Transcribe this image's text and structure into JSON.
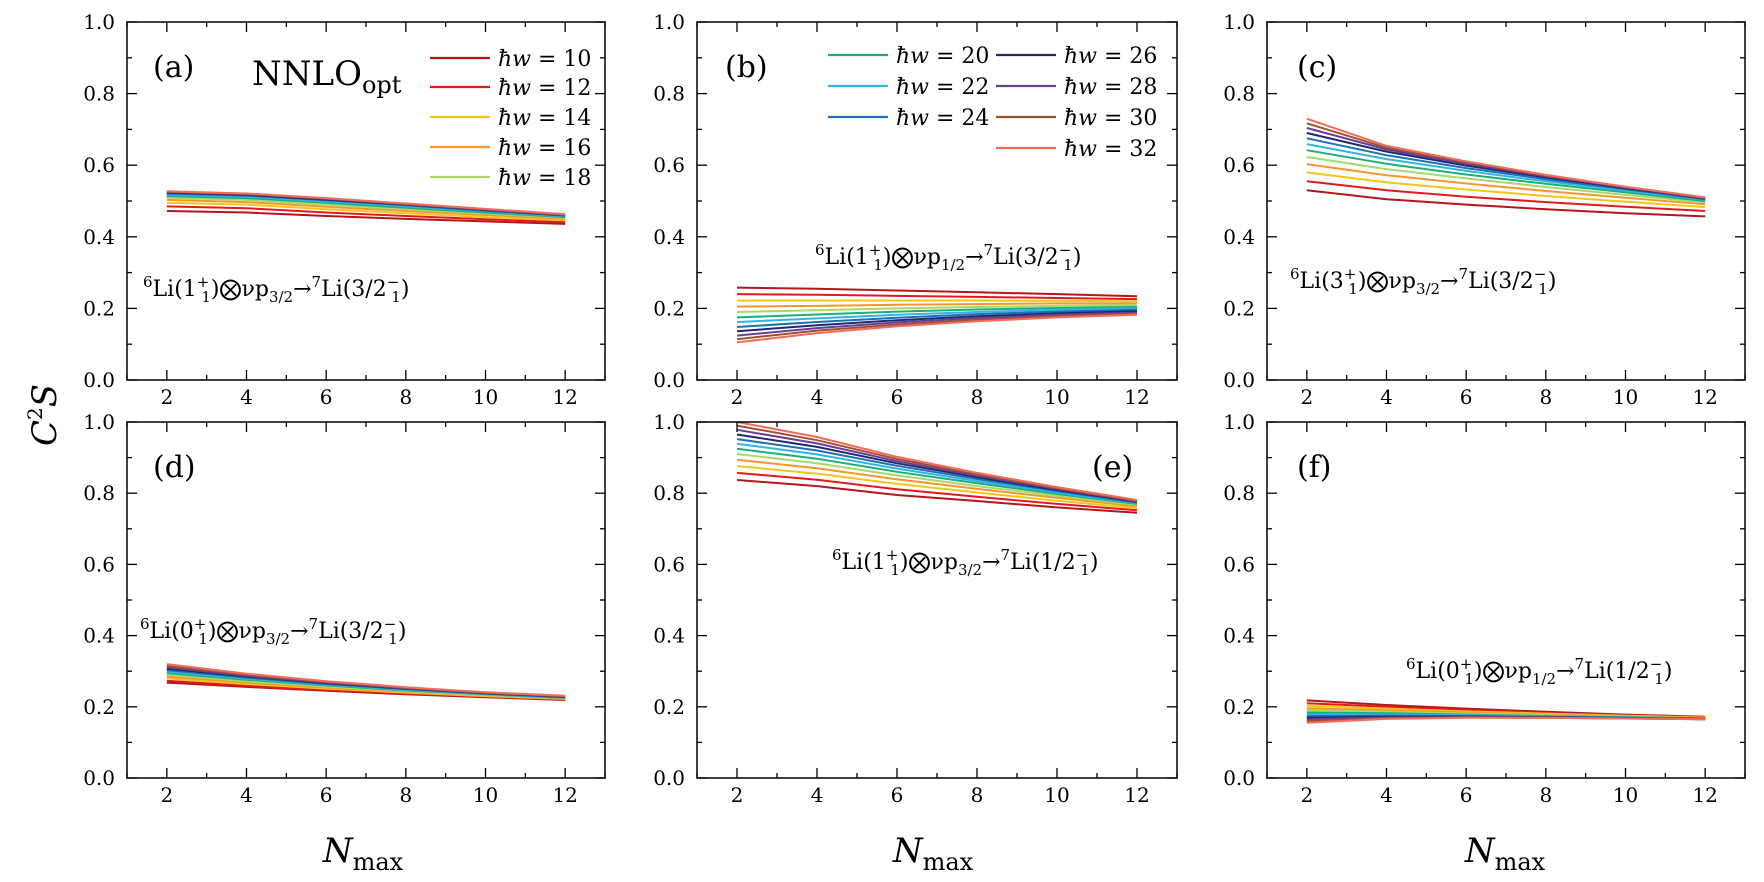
{
  "figure": {
    "ylabel_main": "C",
    "ylabel_sup": "2",
    "ylabel_tail": "S",
    "xlabel_main": "N",
    "xlabel_sub": "max",
    "model_main": "NNLO",
    "model_sub": "opt"
  },
  "legend_entries": [
    {
      "label": "ħw = 10",
      "color": "#b3171c"
    },
    {
      "label": "ħw = 12",
      "color": "#e31a1c"
    },
    {
      "label": "ħw = 14",
      "color": "#f5c518"
    },
    {
      "label": "ħw = 16",
      "color": "#f7962f"
    },
    {
      "label": "ħw = 18",
      "color": "#a6d96a"
    },
    {
      "label": "ħw = 20",
      "color": "#1aae7a"
    },
    {
      "label": "ħw = 22",
      "color": "#33b4e6"
    },
    {
      "label": "ħw = 24",
      "color": "#1f6fb4"
    },
    {
      "label": "ħw = 26",
      "color": "#1f2a6e"
    },
    {
      "label": "ħw = 28",
      "color": "#6a3d9a"
    },
    {
      "label": "ħw = 30",
      "color": "#a0522d"
    },
    {
      "label": "ħw = 32",
      "color": "#f26b5b"
    }
  ],
  "chart_data": [
    {
      "type": "line",
      "panel": "(a)",
      "reaction": {
        "pre": "6",
        "a": "Li(1",
        "b": "+",
        "c": "1",
        "d": ")⨂νp",
        "e": "3/2",
        "f": "→",
        "g": "7",
        "h": "Li(3/2",
        "i": "−",
        "j": "1",
        "k": ")"
      },
      "x": [
        2,
        4,
        6,
        8,
        10,
        12
      ],
      "xlim": [
        1,
        13
      ],
      "ylim": [
        0,
        1.0
      ],
      "xticks": [
        2,
        4,
        6,
        8,
        10,
        12
      ],
      "yticks": [
        0.0,
        0.2,
        0.4,
        0.6,
        0.8,
        1.0
      ],
      "series": [
        {
          "name": "ħw = 10",
          "values": [
            0.472,
            0.468,
            0.458,
            0.45,
            0.443,
            0.436
          ]
        },
        {
          "name": "ħw = 12",
          "values": [
            0.485,
            0.48,
            0.468,
            0.458,
            0.449,
            0.441
          ]
        },
        {
          "name": "ħw = 14",
          "values": [
            0.495,
            0.49,
            0.477,
            0.466,
            0.455,
            0.446
          ]
        },
        {
          "name": "ħw = 16",
          "values": [
            0.503,
            0.497,
            0.484,
            0.472,
            0.461,
            0.45
          ]
        },
        {
          "name": "ħw = 18",
          "values": [
            0.509,
            0.503,
            0.49,
            0.477,
            0.465,
            0.453
          ]
        },
        {
          "name": "ħw = 20",
          "values": [
            0.514,
            0.508,
            0.495,
            0.481,
            0.468,
            0.455
          ]
        },
        {
          "name": "ħw = 22",
          "values": [
            0.518,
            0.512,
            0.499,
            0.485,
            0.471,
            0.457
          ]
        },
        {
          "name": "ħw = 24",
          "values": [
            0.521,
            0.515,
            0.502,
            0.488,
            0.473,
            0.459
          ]
        },
        {
          "name": "ħw = 26",
          "values": [
            0.523,
            0.517,
            0.504,
            0.49,
            0.475,
            0.46
          ]
        },
        {
          "name": "ħw = 28",
          "values": [
            0.525,
            0.519,
            0.506,
            0.491,
            0.476,
            0.461
          ]
        },
        {
          "name": "ħw = 30",
          "values": [
            0.526,
            0.52,
            0.507,
            0.492,
            0.477,
            0.462
          ]
        },
        {
          "name": "ħw = 32",
          "values": [
            0.527,
            0.521,
            0.508,
            0.493,
            0.478,
            0.463
          ]
        }
      ]
    },
    {
      "type": "line",
      "panel": "(b)",
      "reaction": {
        "pre": "6",
        "a": "Li(1",
        "b": "+",
        "c": "1",
        "d": ")⨂νp",
        "e": "1/2",
        "f": "→",
        "g": "7",
        "h": "Li(3/2",
        "i": "−",
        "j": "1",
        "k": ")"
      },
      "x": [
        2,
        4,
        6,
        8,
        10,
        12
      ],
      "xlim": [
        1,
        13
      ],
      "ylim": [
        0,
        1.0
      ],
      "xticks": [
        2,
        4,
        6,
        8,
        10,
        12
      ],
      "yticks": [
        0.0,
        0.2,
        0.4,
        0.6,
        0.8,
        1.0
      ],
      "series": [
        {
          "name": "ħw = 10",
          "values": [
            0.258,
            0.255,
            0.25,
            0.245,
            0.24,
            0.234
          ]
        },
        {
          "name": "ħw = 12",
          "values": [
            0.24,
            0.238,
            0.235,
            0.232,
            0.229,
            0.226
          ]
        },
        {
          "name": "ħw = 14",
          "values": [
            0.222,
            0.222,
            0.222,
            0.222,
            0.221,
            0.22
          ]
        },
        {
          "name": "ħw = 16",
          "values": [
            0.205,
            0.207,
            0.21,
            0.212,
            0.214,
            0.214
          ]
        },
        {
          "name": "ħw = 18",
          "values": [
            0.19,
            0.195,
            0.2,
            0.204,
            0.207,
            0.209
          ]
        },
        {
          "name": "ħw = 20",
          "values": [
            0.175,
            0.183,
            0.191,
            0.197,
            0.201,
            0.204
          ]
        },
        {
          "name": "ħw = 22",
          "values": [
            0.162,
            0.172,
            0.182,
            0.19,
            0.196,
            0.2
          ]
        },
        {
          "name": "ħw = 24",
          "values": [
            0.148,
            0.162,
            0.174,
            0.184,
            0.191,
            0.196
          ]
        },
        {
          "name": "ħw = 26",
          "values": [
            0.136,
            0.153,
            0.167,
            0.178,
            0.186,
            0.192
          ]
        },
        {
          "name": "ħw = 28",
          "values": [
            0.124,
            0.145,
            0.161,
            0.173,
            0.182,
            0.188
          ]
        },
        {
          "name": "ħw = 30",
          "values": [
            0.114,
            0.138,
            0.155,
            0.168,
            0.178,
            0.185
          ]
        },
        {
          "name": "ħw = 32",
          "values": [
            0.105,
            0.131,
            0.15,
            0.164,
            0.175,
            0.182
          ]
        }
      ]
    },
    {
      "type": "line",
      "panel": "(c)",
      "reaction": {
        "pre": "6",
        "a": "Li(3",
        "b": "+",
        "c": "1",
        "d": ")⨂νp",
        "e": "3/2",
        "f": "→",
        "g": "7",
        "h": "Li(3/2",
        "i": "−",
        "j": "1",
        "k": ")"
      },
      "x": [
        2,
        4,
        6,
        8,
        10,
        12
      ],
      "xlim": [
        1,
        13
      ],
      "ylim": [
        0,
        1.0
      ],
      "xticks": [
        2,
        4,
        6,
        8,
        10,
        12
      ],
      "yticks": [
        0.0,
        0.2,
        0.4,
        0.6,
        0.8,
        1.0
      ],
      "series": [
        {
          "name": "ħw = 10",
          "values": [
            0.53,
            0.505,
            0.49,
            0.477,
            0.466,
            0.457
          ]
        },
        {
          "name": "ħw = 12",
          "values": [
            0.555,
            0.53,
            0.512,
            0.497,
            0.484,
            0.472
          ]
        },
        {
          "name": "ħw = 14",
          "values": [
            0.58,
            0.552,
            0.532,
            0.514,
            0.498,
            0.483
          ]
        },
        {
          "name": "ħw = 16",
          "values": [
            0.603,
            0.572,
            0.549,
            0.528,
            0.509,
            0.491
          ]
        },
        {
          "name": "ħw = 18",
          "values": [
            0.623,
            0.589,
            0.563,
            0.539,
            0.517,
            0.496
          ]
        },
        {
          "name": "ħw = 20",
          "values": [
            0.642,
            0.604,
            0.574,
            0.548,
            0.524,
            0.5
          ]
        },
        {
          "name": "ħw = 22",
          "values": [
            0.659,
            0.617,
            0.584,
            0.555,
            0.529,
            0.503
          ]
        },
        {
          "name": "ħw = 24",
          "values": [
            0.675,
            0.628,
            0.592,
            0.561,
            0.533,
            0.505
          ]
        },
        {
          "name": "ħw = 26",
          "values": [
            0.69,
            0.638,
            0.599,
            0.566,
            0.536,
            0.507
          ]
        },
        {
          "name": "ħw = 28",
          "values": [
            0.704,
            0.644,
            0.604,
            0.569,
            0.538,
            0.508
          ]
        },
        {
          "name": "ħw = 30",
          "values": [
            0.717,
            0.649,
            0.608,
            0.571,
            0.539,
            0.509
          ]
        },
        {
          "name": "ħw = 32",
          "values": [
            0.73,
            0.654,
            0.611,
            0.573,
            0.54,
            0.51
          ]
        }
      ]
    },
    {
      "type": "line",
      "panel": "(d)",
      "reaction": {
        "pre": "6",
        "a": "Li(0",
        "b": "+",
        "c": "1",
        "d": ")⨂νp",
        "e": "3/2",
        "f": "→",
        "g": "7",
        "h": "Li(3/2",
        "i": "−",
        "j": "1",
        "k": ")"
      },
      "x": [
        2,
        4,
        6,
        8,
        10,
        12
      ],
      "xlim": [
        1,
        13
      ],
      "ylim": [
        0,
        1.0
      ],
      "xticks": [
        2,
        4,
        6,
        8,
        10,
        12
      ],
      "yticks": [
        0.0,
        0.2,
        0.4,
        0.6,
        0.8,
        1.0
      ],
      "series": [
        {
          "name": "ħw = 10",
          "values": [
            0.268,
            0.256,
            0.245,
            0.235,
            0.227,
            0.219
          ]
        },
        {
          "name": "ħw = 12",
          "values": [
            0.273,
            0.259,
            0.247,
            0.237,
            0.228,
            0.22
          ]
        },
        {
          "name": "ħw = 14",
          "values": [
            0.28,
            0.264,
            0.251,
            0.24,
            0.23,
            0.222
          ]
        },
        {
          "name": "ħw = 16",
          "values": [
            0.285,
            0.268,
            0.254,
            0.242,
            0.232,
            0.223
          ]
        },
        {
          "name": "ħw = 18",
          "values": [
            0.29,
            0.272,
            0.257,
            0.244,
            0.233,
            0.224
          ]
        },
        {
          "name": "ħw = 20",
          "values": [
            0.295,
            0.276,
            0.26,
            0.246,
            0.235,
            0.225
          ]
        },
        {
          "name": "ħw = 22",
          "values": [
            0.299,
            0.279,
            0.262,
            0.248,
            0.236,
            0.226
          ]
        },
        {
          "name": "ħw = 24",
          "values": [
            0.303,
            0.282,
            0.264,
            0.25,
            0.237,
            0.227
          ]
        },
        {
          "name": "ħw = 26",
          "values": [
            0.307,
            0.285,
            0.266,
            0.251,
            0.238,
            0.228
          ]
        },
        {
          "name": "ħw = 28",
          "values": [
            0.311,
            0.287,
            0.268,
            0.252,
            0.239,
            0.229
          ]
        },
        {
          "name": "ħw = 30",
          "values": [
            0.315,
            0.29,
            0.27,
            0.254,
            0.24,
            0.23
          ]
        },
        {
          "name": "ħw = 32",
          "values": [
            0.32,
            0.293,
            0.272,
            0.255,
            0.241,
            0.231
          ]
        }
      ]
    },
    {
      "type": "line",
      "panel": "(e)",
      "reaction": {
        "pre": "6",
        "a": "Li(1",
        "b": "+",
        "c": "1",
        "d": ")⨂νp",
        "e": "3/2",
        "f": "→",
        "g": "7",
        "h": "Li(1/2",
        "i": "−",
        "j": "1",
        "k": ")"
      },
      "x": [
        2,
        4,
        6,
        8,
        10,
        12
      ],
      "xlim": [
        1,
        13
      ],
      "ylim": [
        0,
        1.0
      ],
      "xticks": [
        2,
        4,
        6,
        8,
        10,
        12
      ],
      "yticks": [
        0.0,
        0.2,
        0.4,
        0.6,
        0.8,
        1.0
      ],
      "series": [
        {
          "name": "ħw = 10",
          "values": [
            0.837,
            0.82,
            0.795,
            0.778,
            0.76,
            0.745
          ]
        },
        {
          "name": "ħw = 12",
          "values": [
            0.857,
            0.838,
            0.811,
            0.79,
            0.77,
            0.752
          ]
        },
        {
          "name": "ħw = 14",
          "values": [
            0.876,
            0.855,
            0.826,
            0.802,
            0.779,
            0.758
          ]
        },
        {
          "name": "ħw = 16",
          "values": [
            0.894,
            0.87,
            0.839,
            0.812,
            0.787,
            0.763
          ]
        },
        {
          "name": "ħw = 18",
          "values": [
            0.91,
            0.884,
            0.85,
            0.82,
            0.793,
            0.767
          ]
        },
        {
          "name": "ħw = 20",
          "values": [
            0.925,
            0.897,
            0.86,
            0.828,
            0.798,
            0.77
          ]
        },
        {
          "name": "ħw = 22",
          "values": [
            0.939,
            0.909,
            0.869,
            0.834,
            0.802,
            0.772
          ]
        },
        {
          "name": "ħw = 24",
          "values": [
            0.952,
            0.92,
            0.877,
            0.84,
            0.806,
            0.774
          ]
        },
        {
          "name": "ħw = 26",
          "values": [
            0.965,
            0.93,
            0.884,
            0.845,
            0.809,
            0.776
          ]
        },
        {
          "name": "ħw = 28",
          "values": [
            0.978,
            0.94,
            0.89,
            0.849,
            0.812,
            0.777
          ]
        },
        {
          "name": "ħw = 30",
          "values": [
            0.99,
            0.949,
            0.896,
            0.853,
            0.814,
            0.779
          ]
        },
        {
          "name": "ħw = 32",
          "values": [
            1.0,
            0.958,
            0.902,
            0.857,
            0.817,
            0.781
          ]
        }
      ]
    },
    {
      "type": "line",
      "panel": "(f)",
      "reaction": {
        "pre": "6",
        "a": "Li(0",
        "b": "+",
        "c": "1",
        "d": ")⨂νp",
        "e": "1/2",
        "f": "→",
        "g": "7",
        "h": "Li(1/2",
        "i": "−",
        "j": "1",
        "k": ")"
      },
      "x": [
        2,
        4,
        6,
        8,
        10,
        12
      ],
      "xlim": [
        1,
        13
      ],
      "ylim": [
        0,
        1.0
      ],
      "xticks": [
        2,
        4,
        6,
        8,
        10,
        12
      ],
      "yticks": [
        0.0,
        0.2,
        0.4,
        0.6,
        0.8,
        1.0
      ],
      "series": [
        {
          "name": "ħw = 10",
          "values": [
            0.218,
            0.205,
            0.195,
            0.186,
            0.178,
            0.172
          ]
        },
        {
          "name": "ħw = 12",
          "values": [
            0.21,
            0.2,
            0.191,
            0.183,
            0.176,
            0.171
          ]
        },
        {
          "name": "ħw = 14",
          "values": [
            0.203,
            0.195,
            0.187,
            0.181,
            0.175,
            0.17
          ]
        },
        {
          "name": "ħw = 16",
          "values": [
            0.196,
            0.19,
            0.184,
            0.178,
            0.173,
            0.169
          ]
        },
        {
          "name": "ħw = 18",
          "values": [
            0.19,
            0.186,
            0.181,
            0.176,
            0.172,
            0.168
          ]
        },
        {
          "name": "ħw = 20",
          "values": [
            0.184,
            0.182,
            0.178,
            0.174,
            0.171,
            0.167
          ]
        },
        {
          "name": "ħw = 22",
          "values": [
            0.179,
            0.178,
            0.176,
            0.173,
            0.17,
            0.167
          ]
        },
        {
          "name": "ħw = 24",
          "values": [
            0.174,
            0.175,
            0.174,
            0.172,
            0.169,
            0.166
          ]
        },
        {
          "name": "ħw = 26",
          "values": [
            0.169,
            0.172,
            0.172,
            0.171,
            0.168,
            0.166
          ]
        },
        {
          "name": "ħw = 28",
          "values": [
            0.165,
            0.17,
            0.171,
            0.17,
            0.168,
            0.165
          ]
        },
        {
          "name": "ħw = 30",
          "values": [
            0.16,
            0.168,
            0.17,
            0.169,
            0.167,
            0.165
          ]
        },
        {
          "name": "ħw = 32",
          "values": [
            0.155,
            0.166,
            0.169,
            0.169,
            0.167,
            0.165
          ]
        }
      ]
    }
  ]
}
